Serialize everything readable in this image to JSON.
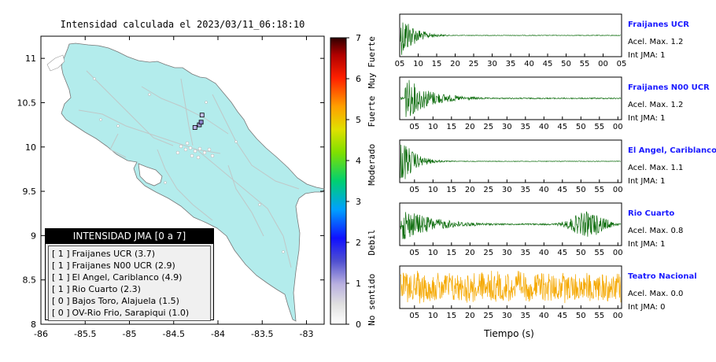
{
  "map": {
    "title": "Intensidad calculada el 2023/03/11_06:18:10",
    "x_ticks": [
      "-86",
      "-85.5",
      "-85",
      "-84.5",
      "-84",
      "-83.5",
      "-83"
    ],
    "y_ticks": [
      "11",
      "10.5",
      "10",
      "9.5",
      "9",
      "8.5",
      "8"
    ],
    "colorbar": {
      "ticks": [
        "0",
        "1",
        "2",
        "3",
        "4",
        "5",
        "6",
        "7"
      ],
      "labels": [
        "No sentido",
        "Debil",
        "Moderado",
        "Fuerte",
        "Muy Fuerte"
      ]
    },
    "stations": [
      {
        "lon": -84.26,
        "lat": 10.22,
        "color": "#b6b0e6"
      },
      {
        "lon": -84.21,
        "lat": 10.25,
        "color": "#a6a0d8"
      },
      {
        "lon": -84.19,
        "lat": 10.28,
        "color": "#8e88d0"
      },
      {
        "lon": -84.18,
        "lat": 10.36,
        "color": "#c8c2ee"
      }
    ],
    "legend": {
      "title": "INTENSIDAD JMA [0 a 7]",
      "rows": [
        {
          "code": "[ 1 ]",
          "text": "Fraijanes UCR (3.7)"
        },
        {
          "code": "[ 1 ]",
          "text": "Fraijanes N00 UCR (2.9)"
        },
        {
          "code": "[ 1 ]",
          "text": "El Angel, Cariblanco (4.9)"
        },
        {
          "code": "[ 1 ]",
          "text": "Rio Cuarto (2.3)"
        },
        {
          "code": "[ 0 ]",
          "text": "Bajos Toro, Alajuela (1.5)"
        },
        {
          "code": "[ 0 ]",
          "text": "OV-Rio Frio, Sarapiqui (1.0)"
        }
      ]
    }
  },
  "chart_data": [
    {
      "type": "line",
      "name": "Fraijanes UCR",
      "accel_label": "Acel. Max. 1.2",
      "int_label": "Int JMA: 1",
      "color": "#0a6b0a",
      "profile": "early",
      "x_ticks": [
        "05",
        "10",
        "15",
        "20",
        "25",
        "30",
        "35",
        "40",
        "45",
        "50",
        "55",
        "00",
        "05"
      ]
    },
    {
      "type": "line",
      "name": "Fraijanes N00 UCR",
      "accel_label": "Acel. Max. 1.2",
      "int_label": "Int JMA: 1",
      "color": "#0a6b0a",
      "profile": "early2",
      "x_ticks": [
        "05",
        "10",
        "15",
        "20",
        "25",
        "30",
        "35",
        "40",
        "45",
        "50",
        "55",
        "00"
      ]
    },
    {
      "type": "line",
      "name": "El Angel, Cariblanco",
      "accel_label": "Acel. Max. 1.1",
      "int_label": "Int JMA: 1",
      "color": "#0a6b0a",
      "profile": "early",
      "x_ticks": [
        "05",
        "10",
        "15",
        "20",
        "25",
        "30",
        "35",
        "40",
        "45",
        "50",
        "55",
        "00"
      ]
    },
    {
      "type": "line",
      "name": "Rio Cuarto",
      "accel_label": "Acel. Max. 0.8",
      "int_label": "Int JMA: 1",
      "color": "#0a6b0a",
      "profile": "double",
      "x_ticks": [
        "05",
        "10",
        "15",
        "20",
        "25",
        "30",
        "35",
        "40",
        "45",
        "50",
        "55",
        "00"
      ]
    },
    {
      "type": "line",
      "name": "Teatro Nacional",
      "accel_label": "Acel. Max. 0.0",
      "int_label": "Int JMA: 0",
      "color": "#f5a800",
      "profile": "noise",
      "x_ticks": [
        "05",
        "10",
        "15",
        "20",
        "25",
        "30",
        "35",
        "40",
        "45",
        "50",
        "55",
        "00"
      ]
    }
  ],
  "waves_xlabel": "Tiempo (s)"
}
